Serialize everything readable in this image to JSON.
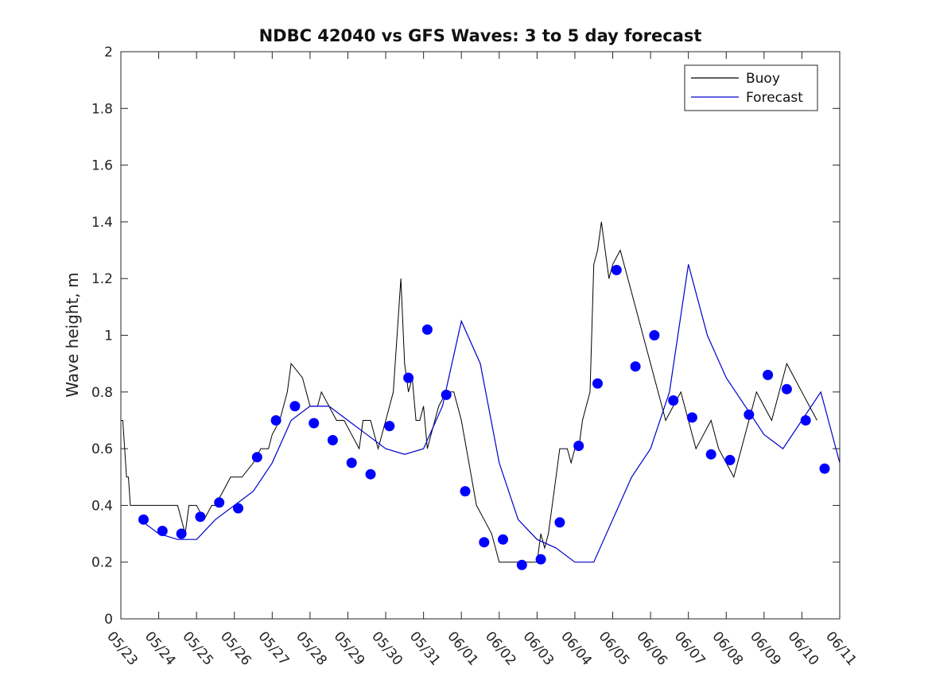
{
  "chart_data": {
    "type": "line",
    "title": "NDBC 42040 vs GFS Waves: 3 to 5 day forecast",
    "xlabel": "",
    "ylabel": "Wave height, m",
    "ylim": [
      0,
      2
    ],
    "y_ticks": [
      "0",
      "0.2",
      "0.4",
      "0.6",
      "0.8",
      "1",
      "1.2",
      "1.4",
      "1.6",
      "1.8",
      "2"
    ],
    "x_range_days": [
      "05/23",
      "06/11"
    ],
    "x_ticks": [
      "05/23",
      "05/24",
      "05/25",
      "05/26",
      "05/27",
      "05/28",
      "05/29",
      "05/30",
      "05/31",
      "06/01",
      "06/02",
      "06/03",
      "06/04",
      "06/05",
      "06/06",
      "06/07",
      "06/08",
      "06/09",
      "06/10",
      "06/11"
    ],
    "grid": false,
    "legend": {
      "placement": "top-right",
      "entries": [
        {
          "name": "Buoy",
          "color": "#000000"
        },
        {
          "name": "Forecast",
          "color": "#0000cc"
        }
      ]
    },
    "series": [
      {
        "name": "Buoy",
        "color": "#000000",
        "x_day": [
          0,
          0.05,
          0.1,
          0.15,
          0.2,
          0.25,
          0.35,
          0.4,
          0.6,
          1.0,
          1.5,
          1.7,
          1.8,
          2.0,
          2.2,
          2.4,
          2.5,
          2.7,
          2.9,
          3.0,
          3.2,
          3.5,
          3.7,
          3.9,
          4.0,
          4.2,
          4.4,
          4.5,
          4.8,
          4.9,
          5.0,
          5.2,
          5.3,
          5.5,
          5.7,
          5.9,
          6.1,
          6.3,
          6.4,
          6.6,
          6.8,
          7.0,
          7.2,
          7.4,
          7.5,
          7.6,
          7.7,
          7.8,
          7.9,
          8.0,
          8.1,
          8.2,
          8.4,
          8.6,
          8.8,
          9.0,
          9.2,
          9.4,
          9.6,
          9.8,
          10.0,
          10.2,
          10.5,
          10.8,
          11.0,
          11.1,
          11.2,
          11.3,
          11.4,
          11.5,
          11.6,
          11.7,
          11.8,
          11.9,
          12.0,
          12.1,
          12.2,
          12.3,
          12.4,
          12.5,
          12.6,
          12.7,
          12.8,
          12.9,
          13.0,
          13.2,
          13.4,
          13.6,
          13.8,
          14.0,
          14.2,
          14.4,
          14.6,
          14.8,
          15.0,
          15.2,
          15.4,
          15.6,
          15.8,
          16.0,
          16.2,
          16.4,
          16.6,
          16.8,
          17.0,
          17.2,
          17.4,
          17.6,
          17.8,
          18.0,
          18.2,
          18.4
        ],
        "values": [
          0.7,
          0.7,
          0.6,
          0.5,
          0.5,
          0.4,
          0.4,
          0.4,
          0.4,
          0.4,
          0.4,
          0.3,
          0.4,
          0.4,
          0.35,
          0.4,
          0.4,
          0.45,
          0.5,
          0.5,
          0.5,
          0.55,
          0.6,
          0.6,
          0.65,
          0.7,
          0.8,
          0.9,
          0.85,
          0.8,
          0.75,
          0.75,
          0.8,
          0.75,
          0.7,
          0.7,
          0.65,
          0.6,
          0.7,
          0.7,
          0.6,
          0.7,
          0.8,
          1.2,
          0.9,
          0.8,
          0.85,
          0.7,
          0.7,
          0.75,
          0.6,
          0.65,
          0.75,
          0.8,
          0.8,
          0.7,
          0.55,
          0.4,
          0.35,
          0.3,
          0.2,
          0.2,
          0.2,
          0.2,
          0.2,
          0.3,
          0.25,
          0.3,
          0.4,
          0.5,
          0.6,
          0.6,
          0.6,
          0.55,
          0.6,
          0.6,
          0.7,
          0.75,
          0.8,
          1.25,
          1.3,
          1.4,
          1.3,
          1.2,
          1.25,
          1.3,
          1.2,
          1.1,
          1.0,
          0.9,
          0.8,
          0.7,
          0.75,
          0.8,
          0.7,
          0.6,
          0.65,
          0.7,
          0.6,
          0.55,
          0.5,
          0.6,
          0.7,
          0.8,
          0.75,
          0.7,
          0.8,
          0.9,
          0.85,
          0.8,
          0.75,
          0.7
        ]
      },
      {
        "name": "Forecast",
        "color": "#0000cc",
        "x_day": [
          0.5,
          1.0,
          1.5,
          2.0,
          2.5,
          3.0,
          3.5,
          4.0,
          4.5,
          5.0,
          5.5,
          6.0,
          6.5,
          7.0,
          7.5,
          8.0,
          8.5,
          9.0,
          9.5,
          10.0,
          10.5,
          11.0,
          11.5,
          12.0,
          12.5,
          13.0,
          13.5,
          14.0,
          14.5,
          15.0,
          15.5,
          16.0,
          16.5,
          17.0,
          17.5,
          18.0,
          18.5,
          19.0
        ],
        "values": [
          0.35,
          0.3,
          0.28,
          0.28,
          0.35,
          0.4,
          0.45,
          0.55,
          0.7,
          0.75,
          0.75,
          0.7,
          0.65,
          0.6,
          0.58,
          0.6,
          0.75,
          1.05,
          0.9,
          0.55,
          0.35,
          0.28,
          0.25,
          0.2,
          0.2,
          0.35,
          0.5,
          0.6,
          0.8,
          1.25,
          1.0,
          0.85,
          0.75,
          0.65,
          0.6,
          0.7,
          0.8,
          0.55
        ]
      }
    ],
    "markers": {
      "name": "Forecast",
      "color": "#0000ff",
      "x_day": [
        0.6,
        1.1,
        1.6,
        2.1,
        2.6,
        3.1,
        3.6,
        4.1,
        4.6,
        5.1,
        5.6,
        6.1,
        6.6,
        7.1,
        7.6,
        8.1,
        8.6,
        9.1,
        9.6,
        10.1,
        10.6,
        11.1,
        11.6,
        12.1,
        12.6,
        13.1,
        13.6,
        14.1,
        14.6,
        15.1,
        15.6,
        16.1,
        16.6,
        17.1,
        17.6,
        18.1,
        18.6
      ],
      "values": [
        0.35,
        0.31,
        0.3,
        0.36,
        0.41,
        0.39,
        0.57,
        0.7,
        0.75,
        0.69,
        0.63,
        0.55,
        0.51,
        0.68,
        0.85,
        1.02,
        0.79,
        0.45,
        0.27,
        0.28,
        0.19,
        0.21,
        0.34,
        0.61,
        0.83,
        1.23,
        0.89,
        1.0,
        0.77,
        0.71,
        0.58,
        0.56,
        0.72,
        0.86,
        0.81,
        0.7,
        0.53
      ]
    }
  }
}
